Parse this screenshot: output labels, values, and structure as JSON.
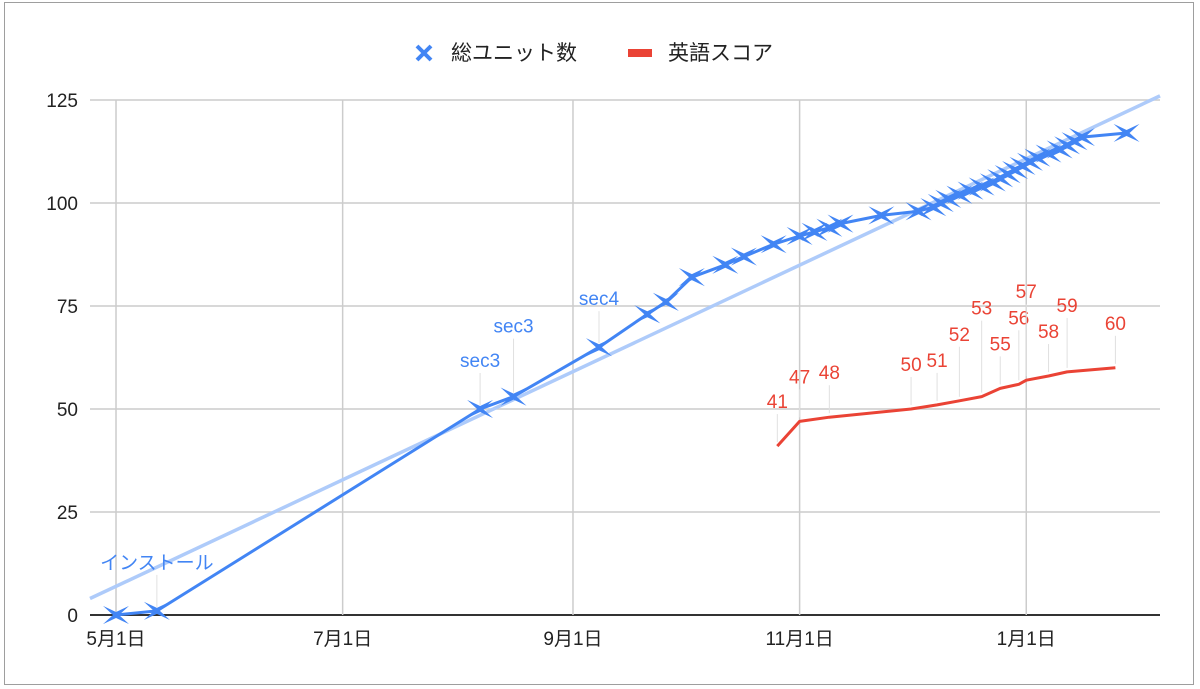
{
  "chart_data": {
    "type": "line",
    "title": "",
    "xlabel": "",
    "ylabel": "",
    "x_axis": {
      "type": "date",
      "range": [
        "4/24",
        "2/6"
      ],
      "ticks": [
        "5月1日",
        "7月1日",
        "9月1日",
        "11月1日",
        "1月1日"
      ],
      "tick_dates": [
        "5/1",
        "7/1",
        "9/1",
        "11/1",
        "1/1"
      ]
    },
    "ylim": [
      0,
      125
    ],
    "yticks": [
      "0",
      "25",
      "50",
      "75",
      "100",
      "125"
    ],
    "grid": true,
    "legend": {
      "placement": "top",
      "entries": [
        "総ユニット数",
        "英語スコア"
      ]
    },
    "series": [
      {
        "name": "総ユニット数",
        "color": "#4285f4",
        "marker": "star",
        "points": [
          {
            "x": "5/1",
            "y": 0
          },
          {
            "x": "5/12",
            "y": 1,
            "label": "インストール"
          },
          {
            "x": "8/7",
            "y": 50,
            "label": "sec3"
          },
          {
            "x": "8/16",
            "y": 53,
            "label": "sec3"
          },
          {
            "x": "9/8",
            "y": 65,
            "label": "sec4"
          },
          {
            "x": "9/21",
            "y": 73
          },
          {
            "x": "9/26",
            "y": 76
          },
          {
            "x": "10/3",
            "y": 82
          },
          {
            "x": "10/12",
            "y": 85
          },
          {
            "x": "10/17",
            "y": 87
          },
          {
            "x": "10/25",
            "y": 90
          },
          {
            "x": "11/1",
            "y": 92
          },
          {
            "x": "11/5",
            "y": 93
          },
          {
            "x": "11/9",
            "y": 94
          },
          {
            "x": "11/12",
            "y": 95
          },
          {
            "x": "11/23",
            "y": 97
          },
          {
            "x": "12/3",
            "y": 98
          },
          {
            "x": "12/7",
            "y": 99
          },
          {
            "x": "12/9",
            "y": 100
          },
          {
            "x": "12/11",
            "y": 101
          },
          {
            "x": "12/14",
            "y": 102
          },
          {
            "x": "12/17",
            "y": 103
          },
          {
            "x": "12/20",
            "y": 104
          },
          {
            "x": "12/23",
            "y": 105
          },
          {
            "x": "12/25",
            "y": 106
          },
          {
            "x": "12/27",
            "y": 107
          },
          {
            "x": "12/29",
            "y": 108
          },
          {
            "x": "12/31",
            "y": 109
          },
          {
            "x": "1/2",
            "y": 110
          },
          {
            "x": "1/4",
            "y": 111
          },
          {
            "x": "1/7",
            "y": 112
          },
          {
            "x": "1/10",
            "y": 113
          },
          {
            "x": "1/12",
            "y": 114
          },
          {
            "x": "1/14",
            "y": 115
          },
          {
            "x": "1/16",
            "y": 116
          },
          {
            "x": "1/28",
            "y": 117
          }
        ],
        "trendline": {
          "type": "linear",
          "color": "#aecbfa",
          "from": {
            "x": "4/24",
            "y": 4
          },
          "to": {
            "x": "2/6",
            "y": 126
          }
        }
      },
      {
        "name": "英語スコア",
        "color": "#ea4335",
        "marker": "none",
        "points": [
          {
            "x": "10/26",
            "y": 41,
            "label": "41"
          },
          {
            "x": "11/1",
            "y": 47,
            "label": "47"
          },
          {
            "x": "11/9",
            "y": 48,
            "label": "48"
          },
          {
            "x": "12/1",
            "y": 50,
            "label": "50"
          },
          {
            "x": "12/8",
            "y": 51,
            "label": "51"
          },
          {
            "x": "12/14",
            "y": 52,
            "label": "52"
          },
          {
            "x": "12/20",
            "y": 53,
            "label": "53"
          },
          {
            "x": "12/25",
            "y": 55,
            "label": "55"
          },
          {
            "x": "12/30",
            "y": 56,
            "label": "56"
          },
          {
            "x": "1/1",
            "y": 57,
            "label": "57"
          },
          {
            "x": "1/7",
            "y": 58,
            "label": "58"
          },
          {
            "x": "1/12",
            "y": 59,
            "label": "59"
          },
          {
            "x": "1/25",
            "y": 60,
            "label": "60"
          }
        ]
      }
    ]
  }
}
